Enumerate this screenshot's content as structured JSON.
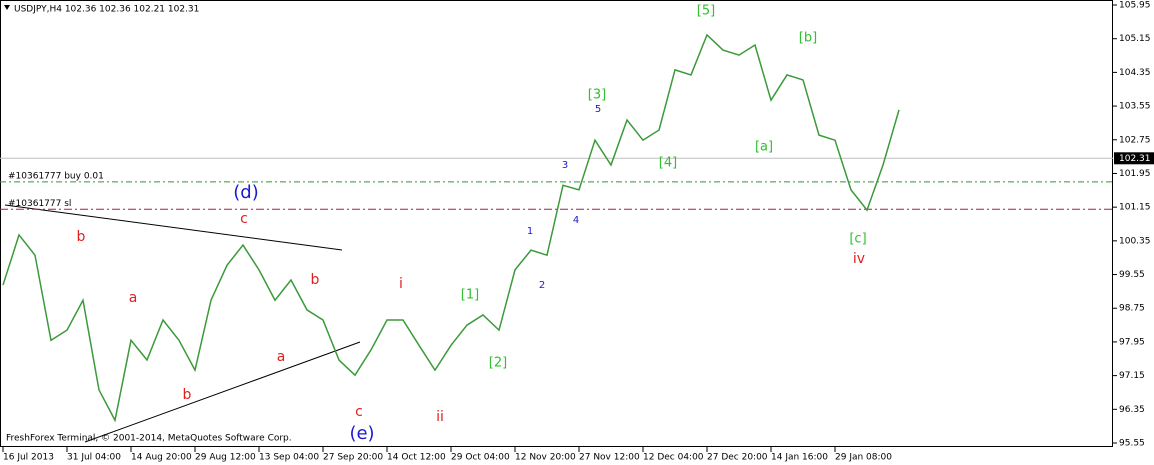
{
  "chart_data": {
    "type": "line",
    "header": "USDJPY,H4  102.36 102.36 102.21 102.31",
    "footer": "FreshForex Terminal, © 2001-2014, MetaQuotes Software Corp.",
    "categories": [
      "16 Jul 2013",
      null,
      null,
      null,
      "31 Jul 04:00",
      null,
      null,
      null,
      "14 Aug 20:00",
      null,
      null,
      null,
      "29 Aug 12:00",
      null,
      null,
      null,
      "13 Sep 04:00",
      null,
      null,
      null,
      "27 Sep 20:00",
      null,
      null,
      null,
      "14 Oct 12:00",
      null,
      null,
      null,
      "29 Oct 04:00",
      null,
      null,
      null,
      "12 Nov 20:00",
      null,
      null,
      null,
      "27 Nov 12:00",
      null,
      null,
      null,
      "12 Dec 04:00",
      null,
      null,
      null,
      "27 Dec 20:00",
      null,
      null,
      null,
      "14 Jan 16:00",
      null,
      null,
      null,
      "29 Jan 08:00",
      null,
      null,
      null,
      null
    ],
    "series": [
      {
        "name": "USDJPY",
        "color": "#3a9a3a",
        "values": [
          99.3,
          100.49,
          100.01,
          97.99,
          98.23,
          98.94,
          96.81,
          96.09,
          97.99,
          97.52,
          98.47,
          97.99,
          97.28,
          98.94,
          99.77,
          100.25,
          99.66,
          98.94,
          99.42,
          98.71,
          98.47,
          97.52,
          97.16,
          97.76,
          98.47,
          98.47,
          97.87,
          97.28,
          97.87,
          98.35,
          98.59,
          98.23,
          99.66,
          100.13,
          100.01,
          101.67,
          101.56,
          102.74,
          102.15,
          103.22,
          102.74,
          102.98,
          104.41,
          104.29,
          105.24,
          104.88,
          104.76,
          105.0,
          103.69,
          104.29,
          104.17,
          102.86,
          102.74,
          101.56,
          101.08,
          102.15,
          103.46
        ]
      }
    ],
    "ylim": [
      95.55,
      105.95
    ],
    "yticks": [
      95.55,
      96.35,
      97.15,
      97.95,
      98.75,
      99.55,
      100.35,
      101.15,
      101.95,
      102.75,
      103.55,
      104.35,
      105.15,
      105.95
    ],
    "last_price": 102.31,
    "order_lines": [
      {
        "label": "#10361777 buy 0.01",
        "value": 101.75,
        "color": "#2aa02a"
      },
      {
        "label": "#10361777 sl",
        "value": 101.1,
        "color": "#a0204a"
      }
    ],
    "annotations": [
      {
        "text": "(d)",
        "color": "#1a1ad0"
      },
      {
        "text": "c",
        "color": "#e02020"
      },
      {
        "text": "b",
        "color": "#e02020"
      },
      {
        "text": "a",
        "color": "#e02020"
      },
      {
        "text": "b",
        "color": "#e02020"
      },
      {
        "text": "a",
        "color": "#e02020"
      },
      {
        "text": "b",
        "color": "#e02020"
      },
      {
        "text": "c",
        "color": "#e02020"
      },
      {
        "text": "(e)",
        "color": "#1a1ad0"
      },
      {
        "text": "i",
        "color": "#e02020"
      },
      {
        "text": "ii",
        "color": "#e02020"
      },
      {
        "text": "[1]",
        "color": "#30c030"
      },
      {
        "text": "[2]",
        "color": "#30c030"
      },
      {
        "text": "1",
        "color": "#1a1ad0"
      },
      {
        "text": "2",
        "color": "#1a1ad0"
      },
      {
        "text": "3",
        "color": "#1a1ad0"
      },
      {
        "text": "4",
        "color": "#1a1ad0"
      },
      {
        "text": "5",
        "color": "#1a1ad0"
      },
      {
        "text": "[3]",
        "color": "#30c030"
      },
      {
        "text": "[4]",
        "color": "#30c030"
      },
      {
        "text": "[5]",
        "color": "#30c030"
      },
      {
        "text": "[a]",
        "color": "#30c030"
      },
      {
        "text": "[b]",
        "color": "#30c030"
      },
      {
        "text": "[c]",
        "color": "#30c030"
      },
      {
        "text": "iv",
        "color": "#e02020"
      }
    ]
  }
}
